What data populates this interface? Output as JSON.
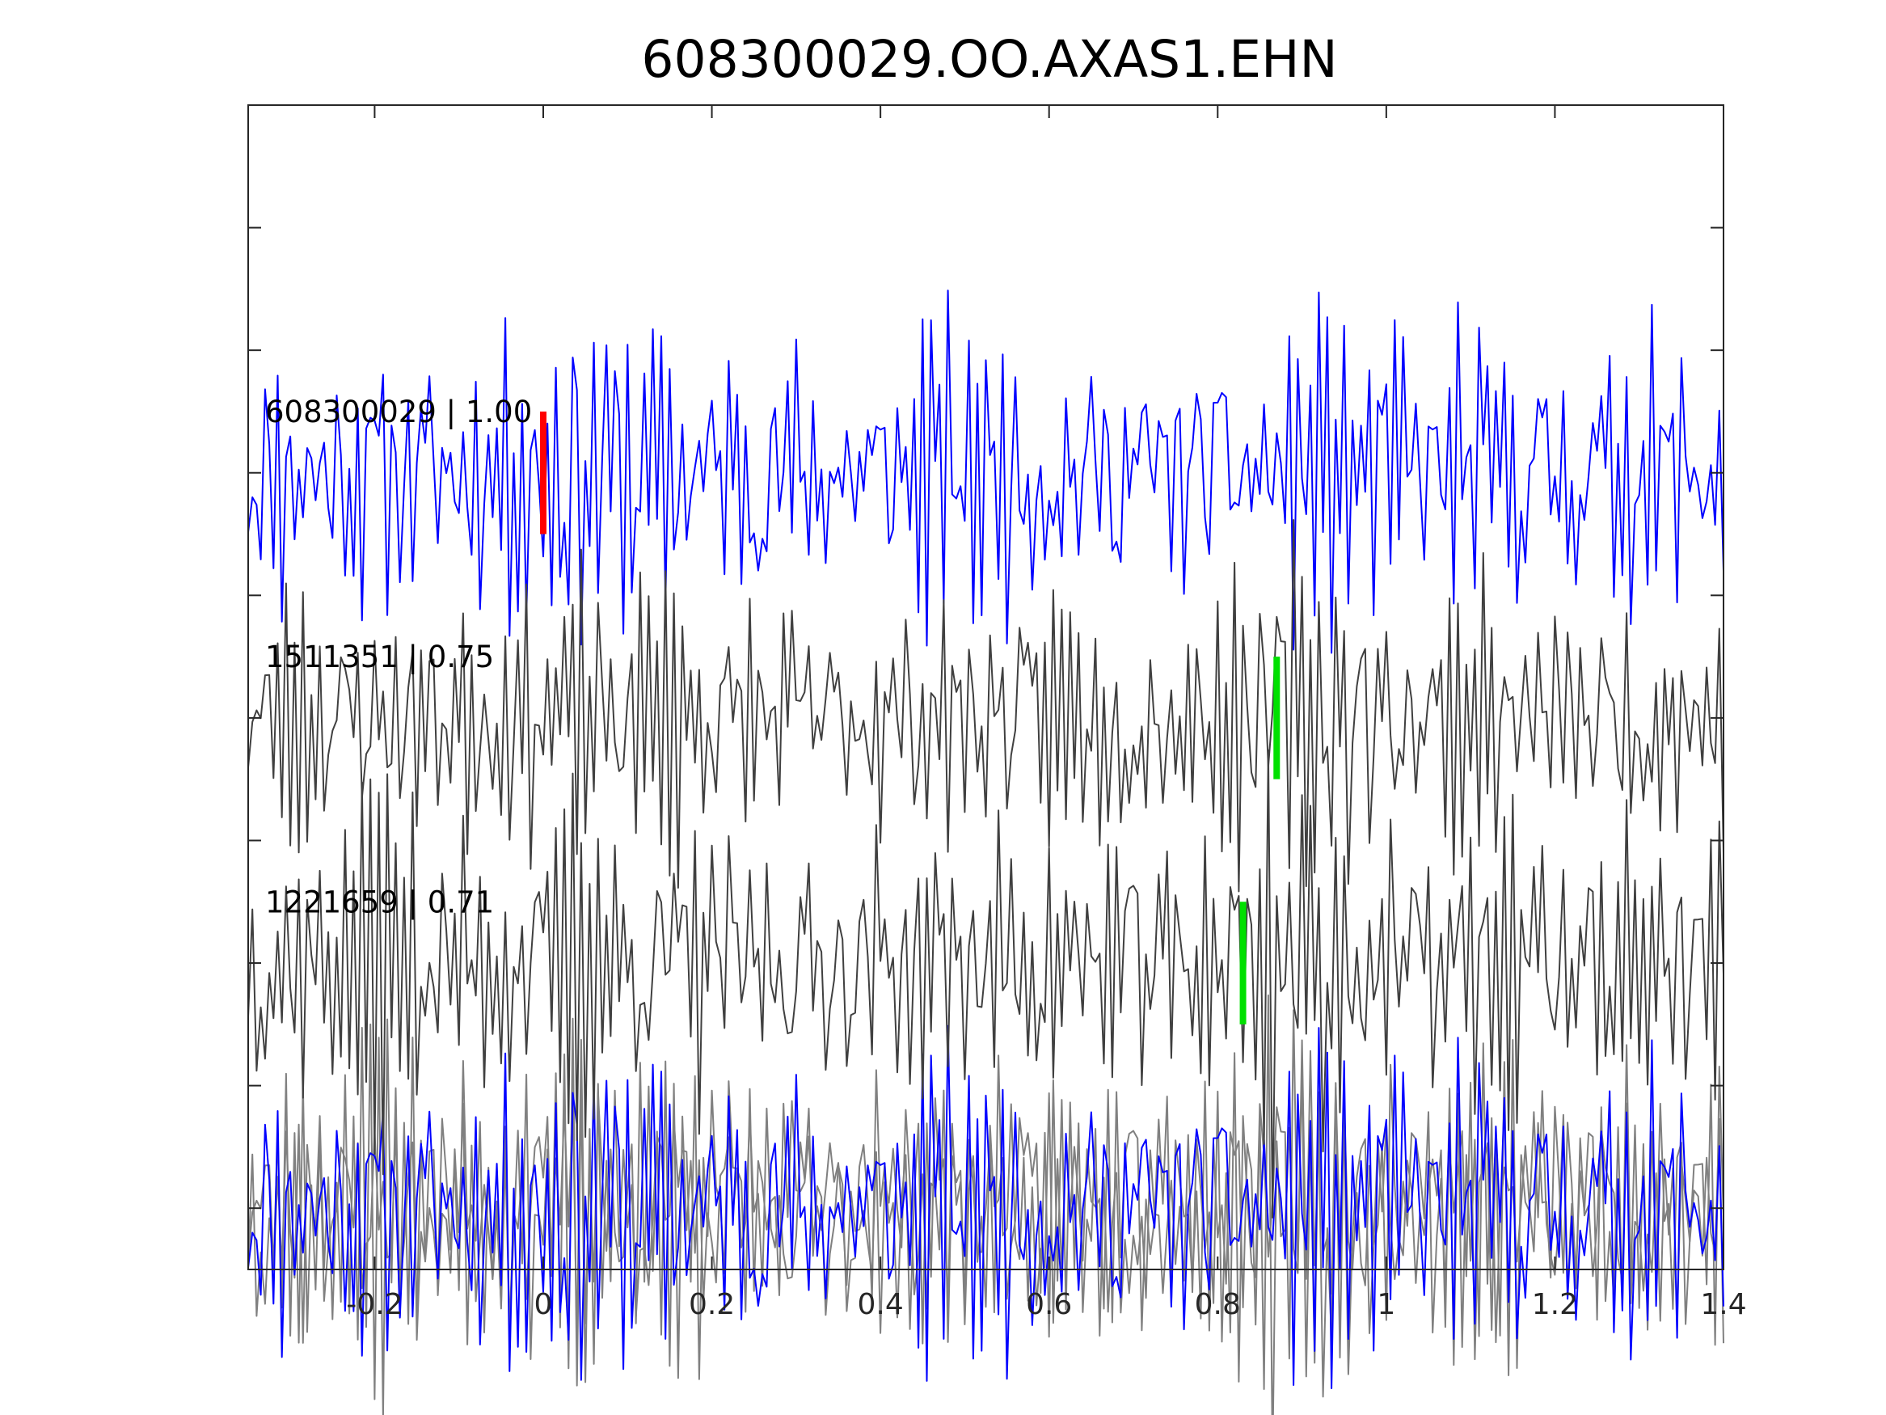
{
  "chart_data": {
    "type": "line",
    "title": "608300029.OO.AXAS1.EHN",
    "xlabel": "",
    "ylabel": "",
    "xlim": [
      -0.35,
      1.4
    ],
    "ylim": [
      0.5,
      10
    ],
    "x_ticks": [
      -0.2,
      0,
      0.2,
      0.4,
      0.6,
      0.8,
      1,
      1.2,
      1.4
    ],
    "x_tick_labels": [
      "-0.2",
      "0",
      "0.2",
      "0.4",
      "0.6",
      "0.8",
      "1",
      "1.2",
      "1.4"
    ],
    "y_ticks": [
      1,
      2,
      3,
      4,
      5,
      6,
      7,
      8,
      9
    ],
    "grid": false,
    "sample_interval": 0.005,
    "traces": [
      {
        "label": "608300029 | 1.00",
        "offset": 7,
        "amplitude": 1.0,
        "color": "#0000ff",
        "pick_time": 0.0,
        "pick_color": "#ff0000",
        "seed": 11
      },
      {
        "label": "1511351 | 0.75",
        "offset": 5,
        "amplitude": 0.85,
        "color": "#404040",
        "pick_time": 0.87,
        "pick_color": "#00e000",
        "seed": 23
      },
      {
        "label": "1221659 | 0.71",
        "offset": 3,
        "amplitude": 0.95,
        "color": "#404040",
        "pick_time": 0.83,
        "pick_color": "#00e000",
        "seed": 37
      }
    ],
    "stack": {
      "offset": 1,
      "overlay_color": "#808080",
      "primary_color": "#0000ff"
    }
  }
}
